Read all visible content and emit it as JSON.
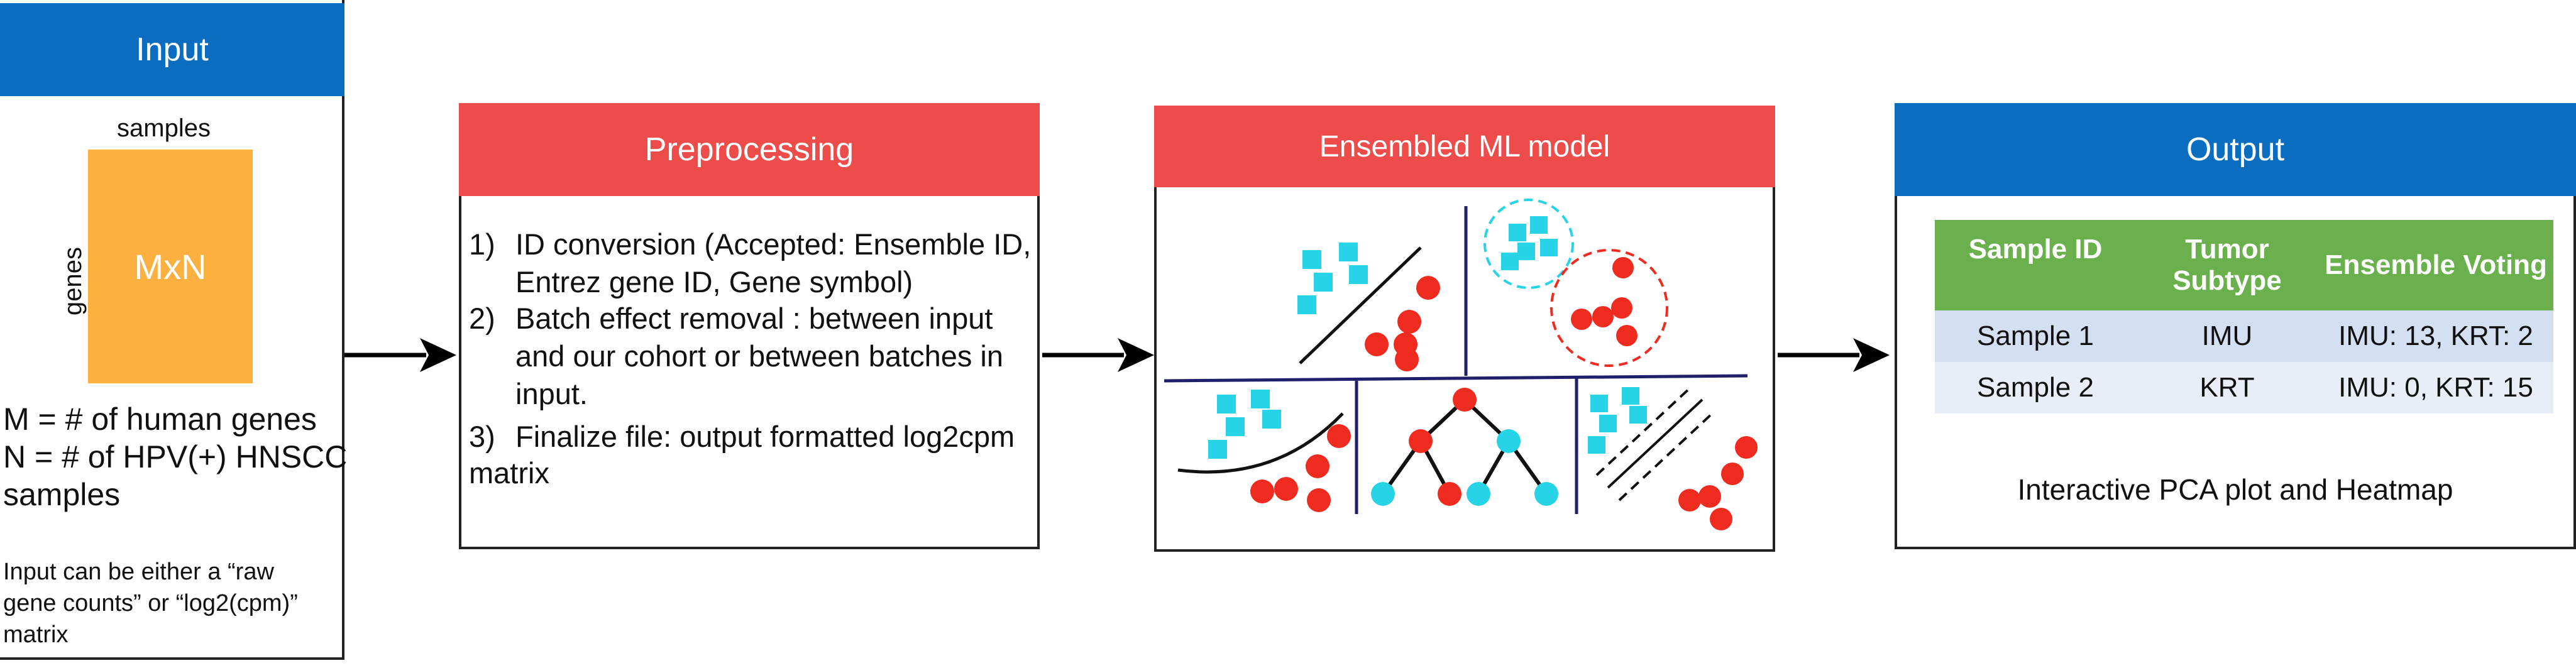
{
  "input": {
    "title": "Input",
    "samples_label": "samples",
    "genes_label": "genes",
    "matrix_label": "MxN",
    "def_m": "M = # of human genes",
    "def_n_line1": "N = # of HPV(+) HNSCC",
    "def_n_line2": "samples",
    "note_line1": "Input can be either a “raw",
    "note_line2": "gene counts” or “log2(cpm)”",
    "note_line3": "matrix"
  },
  "preprocessing": {
    "title": "Preprocessing",
    "steps": [
      {
        "num": "1)",
        "line1": "ID conversion (Accepted: Ensemble ID,",
        "line2": "Entrez gene ID, Gene symbol)"
      },
      {
        "num": "2)",
        "line1": "Batch effect removal :  between input",
        "line2": "and our cohort or between batches in",
        "line3": "input."
      },
      {
        "num": "3)",
        "line1": "Finalize file: output formatted log2cpm",
        "line2": "matrix"
      }
    ]
  },
  "model": {
    "title": "Ensembled ML model"
  },
  "output": {
    "title": "Output",
    "table": {
      "headers": [
        "Sample ID",
        "Tumor Subtype",
        "Ensemble Voting"
      ],
      "header_subtype_line1": "Tumor",
      "header_subtype_line2": "Subtype",
      "rows": [
        {
          "id": "Sample 1",
          "subtype": "IMU",
          "voting": "IMU: 13, KRT: 2"
        },
        {
          "id": "Sample 2",
          "subtype": "KRT",
          "voting": "IMU: 0, KRT: 15"
        }
      ]
    },
    "caption": "Interactive PCA plot and Heatmap"
  },
  "colors": {
    "blue_header": "#0a6dbf",
    "red_header": "#ee4b4b",
    "matrix_orange": "#fbb040",
    "cyan_points": "#27d3e6",
    "red_points": "#ef2a1f",
    "table_green": "#6ab04c",
    "divider_navy": "#1f1f6b"
  }
}
